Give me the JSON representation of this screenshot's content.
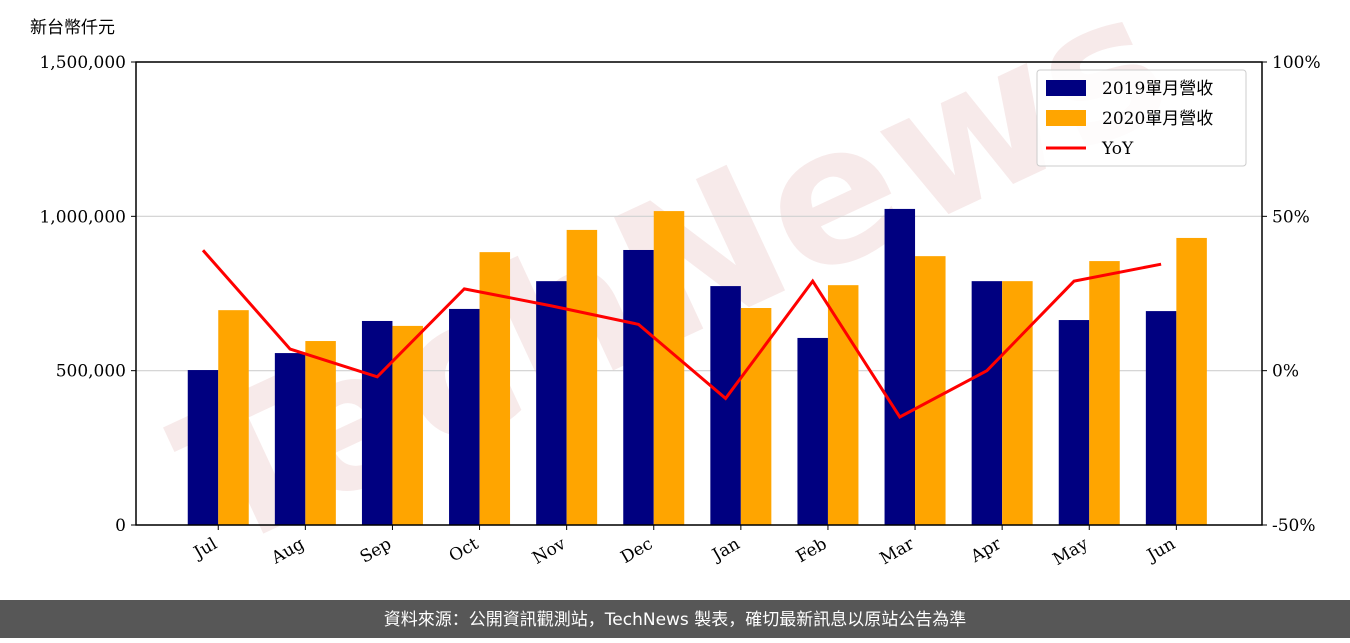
{
  "chart_data": {
    "type": "bar_line",
    "y_label": "新台幣仟元",
    "watermark": "TechNews",
    "categories": [
      "Jul",
      "Aug",
      "Sep",
      "Oct",
      "Nov",
      "Dec",
      "Jan",
      "Feb",
      "Mar",
      "Apr",
      "May",
      "Jun"
    ],
    "series": [
      {
        "name": "2019單月營收",
        "color": "#000080",
        "type": "bar",
        "values": [
          502000,
          557000,
          661000,
          700000,
          790000,
          891000,
          774000,
          606000,
          1024000,
          790000,
          664000,
          693000
        ]
      },
      {
        "name": "2020單月營收",
        "color": "#ffa500",
        "type": "bar",
        "values": [
          696000,
          596000,
          645000,
          884000,
          956000,
          1017000,
          703000,
          777000,
          871000,
          790000,
          855000,
          930000
        ]
      },
      {
        "name": "YoY",
        "color": "#ff0000",
        "type": "line",
        "axis": "y2",
        "values": [
          39,
          7,
          -2,
          26.5,
          21,
          15,
          -9,
          29,
          -15,
          0,
          29,
          34.5
        ]
      }
    ],
    "ylim": [
      0,
      1500000
    ],
    "yticks": [
      0,
      {
        "value": 500000,
        "label": "500,000"
      },
      {
        "value": 1000000,
        "label": "1,000,000"
      },
      {
        "value": 1500000,
        "label": "1,500,000"
      }
    ],
    "y2lim": [
      -50,
      100
    ],
    "y2ticks": [
      {
        "value": -50,
        "label": "-50%"
      },
      {
        "value": 0,
        "label": "0%"
      },
      {
        "value": 50,
        "label": "50%"
      },
      {
        "value": 100,
        "label": "100%"
      }
    ],
    "grid": true,
    "legend": "upper right",
    "footer": "資料來源：公開資訊觀測站，TechNews 製表，確切最新訊息以原站公告為準"
  }
}
